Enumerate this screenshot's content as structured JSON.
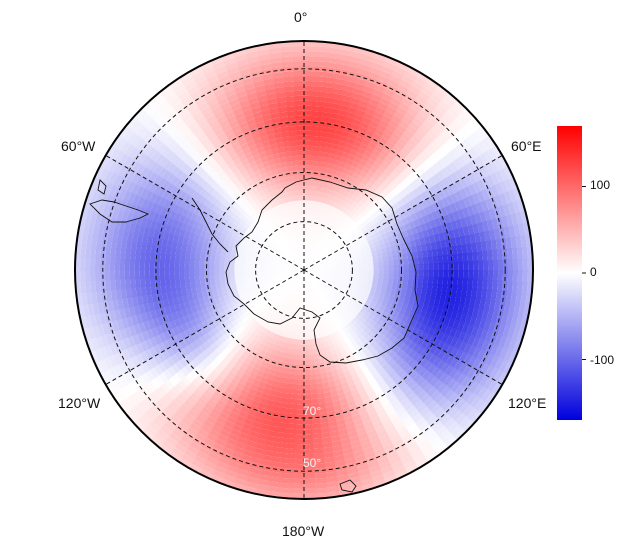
{
  "map": {
    "projection": "south polar stereographic",
    "longitude_labels": {
      "top": "0°",
      "upper_left": "60°W",
      "upper_right": "60°E",
      "lower_left": "120°W",
      "lower_right": "120°E",
      "bottom": "180°W"
    },
    "latitude_labels": [
      "70°",
      "50°"
    ],
    "lat_circles_deg": [
      -80,
      -70,
      -60,
      -50,
      -40
    ],
    "meridians_deg": [
      0,
      60,
      120,
      180,
      240,
      300
    ],
    "field_pattern": {
      "description_free_encoding": "zonal wave",
      "positive_center_lons": [
        0,
        180
      ],
      "negative_center_lons": [
        60,
        240
      ],
      "strongest_negative_lon": 235
    }
  },
  "colorbar": {
    "colors": {
      "low": "#0000dd",
      "mid": "#ffffff",
      "high": "#ff0000"
    },
    "range": [
      -170,
      170
    ],
    "ticks": [
      {
        "value": 100,
        "label": "100"
      },
      {
        "value": 0,
        "label": "0"
      },
      {
        "value": -100,
        "label": "-100"
      }
    ]
  }
}
